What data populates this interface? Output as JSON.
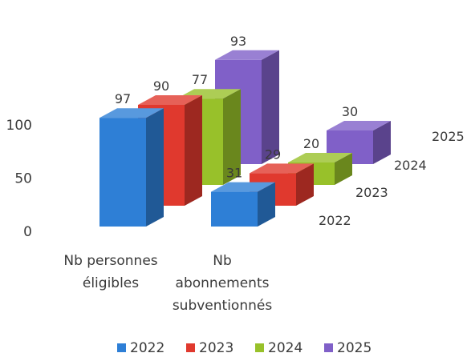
{
  "chart_data": {
    "type": "bar",
    "subtype": "3d-column",
    "title": "",
    "xlabel": "",
    "ylabel": "",
    "categories": [
      "Nb personnes éligibles",
      "Nb abonnements subventionnés"
    ],
    "category_lines": [
      [
        "Nb personnes",
        "éligibles"
      ],
      [
        "Nb",
        "abonnements",
        "subventionnés"
      ]
    ],
    "series": [
      {
        "name": "2022",
        "color": "#2e7fd6",
        "values": [
          97,
          31
        ]
      },
      {
        "name": "2023",
        "color": "#e0392e",
        "values": [
          90,
          29
        ]
      },
      {
        "name": "2024",
        "color": "#98c12a",
        "values": [
          77,
          20
        ]
      },
      {
        "name": "2025",
        "color": "#8060c8",
        "values": [
          93,
          30
        ]
      }
    ],
    "yticks": [
      0,
      50,
      100
    ],
    "ylim": [
      0,
      100
    ],
    "grid": false,
    "legend": "bottom"
  }
}
